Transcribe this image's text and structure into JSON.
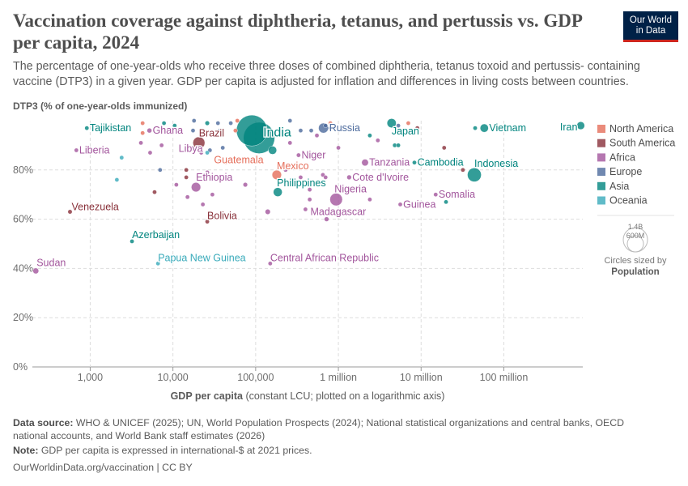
{
  "title": "Vaccination coverage against diphtheria, tetanus, and pertussis vs. GDP per capita, 2024",
  "subtitle": "The percentage of one-year-olds who receive three doses of combined diphtheria, tetanus toxoid and pertussis- containing vaccine (DTP3) in a given year. GDP per capita is adjusted for inflation and differences in living costs between countries.",
  "logo": {
    "line1": "Our World",
    "line2": "in Data"
  },
  "footer": {
    "source_label": "Data source:",
    "source_text": "WHO & UNICEF (2025); UN, World Population Prospects (2024); National statistical organizations and central banks, OECD national accounts, and World Bank staff estimates (2026)",
    "note_label": "Note:",
    "note_text": "GDP per capita is expressed in international-$ at 2021 prices.",
    "url": "OurWorldinData.org/vaccination | CC BY"
  },
  "chart_data": {
    "type": "scatter",
    "ylabel": "DTP3 (% of one-year-olds immunized)",
    "xlabel_bold": "GDP per capita",
    "xlabel_rest": "(constant LCU; plotted on a logarithmic axis)",
    "x_scale": "log",
    "xlim": [
      200,
      900000000
    ],
    "ylim": [
      0,
      100
    ],
    "grid": true,
    "x_ticks": [
      {
        "v": 1000,
        "label": "1,000"
      },
      {
        "v": 10000,
        "label": "10,000"
      },
      {
        "v": 100000,
        "label": "100,000"
      },
      {
        "v": 1000000,
        "label": "1 million"
      },
      {
        "v": 10000000,
        "label": "10 million"
      },
      {
        "v": 100000000,
        "label": "100 million"
      }
    ],
    "y_ticks": [
      {
        "v": 0,
        "label": "0%"
      },
      {
        "v": 20,
        "label": "20%"
      },
      {
        "v": 40,
        "label": "40%"
      },
      {
        "v": 60,
        "label": "60%"
      },
      {
        "v": 80,
        "label": "80%"
      }
    ],
    "regions": [
      {
        "name": "North America",
        "color": "#E56E5A"
      },
      {
        "name": "South America",
        "color": "#883039"
      },
      {
        "name": "Africa",
        "color": "#A2559C"
      },
      {
        "name": "Europe",
        "color": "#4C6A9C"
      },
      {
        "name": "Asia",
        "color": "#00847E"
      },
      {
        "name": "Oceania",
        "color": "#38AABA"
      }
    ],
    "size_legend": {
      "values": [
        "1.4B",
        "600M"
      ],
      "caption": "Circles sized by",
      "variable": "Population"
    },
    "points": [
      {
        "label": "India",
        "region": "Asia",
        "x": 110000,
        "y": 93,
        "pop": 1450000000
      },
      {
        "region": "Asia",
        "x": 90000,
        "y": 96,
        "pop": 1410000000
      },
      {
        "label": "Tajikistan",
        "region": "Asia",
        "x": 910,
        "y": 97,
        "pop": 10000000
      },
      {
        "label": "Ghana",
        "region": "Africa",
        "x": 5200,
        "y": 96,
        "pop": 34000000
      },
      {
        "label": "Brazil",
        "region": "South America",
        "x": 20600,
        "y": 91,
        "pop": 211000000
      },
      {
        "label": "Russia",
        "region": "Europe",
        "x": 660000,
        "y": 97,
        "pop": 144000000
      },
      {
        "label": "Japan",
        "region": "Asia",
        "x": 4400000,
        "y": 99,
        "pop": 124000000
      },
      {
        "label": "Vietnam",
        "region": "Asia",
        "x": 58000000,
        "y": 97,
        "pop": 101000000
      },
      {
        "label": "Iran",
        "region": "Asia",
        "x": 850000000,
        "y": 98,
        "pop": 91000000
      },
      {
        "label": "Liberia",
        "region": "Africa",
        "x": 680,
        "y": 88,
        "pop": 5600000
      },
      {
        "label": "Libya",
        "region": "Africa",
        "x": 22000,
        "y": 87,
        "pop": 7300000
      },
      {
        "label": "Niger",
        "region": "Africa",
        "x": 330000,
        "y": 86,
        "pop": 27000000
      },
      {
        "label": "Guatemala",
        "region": "North America",
        "x": 44000,
        "y": 83,
        "pop": 18000000
      },
      {
        "label": "Mexico",
        "region": "North America",
        "x": 180000,
        "y": 78,
        "pop": 131000000
      },
      {
        "label": "Tanzania",
        "region": "Africa",
        "x": 2100000,
        "y": 83,
        "pop": 68000000
      },
      {
        "label": "Cambodia",
        "region": "Asia",
        "x": 8300000,
        "y": 83,
        "pop": 17000000
      },
      {
        "label": "Indonesia",
        "region": "Asia",
        "x": 44000000,
        "y": 78,
        "pop": 283000000
      },
      {
        "label": "Ethiopia",
        "region": "Africa",
        "x": 19000,
        "y": 73,
        "pop": 130000000
      },
      {
        "label": "Cote d'Ivoire",
        "region": "Africa",
        "x": 1350000,
        "y": 77,
        "pop": 32000000
      },
      {
        "label": "Philippines",
        "region": "Asia",
        "x": 185000,
        "y": 71,
        "pop": 116000000
      },
      {
        "label": "Nigeria",
        "region": "Africa",
        "x": 940000,
        "y": 68,
        "pop": 233000000
      },
      {
        "label": "Somalia",
        "region": "Africa",
        "x": 15000000,
        "y": 70,
        "pop": 19000000
      },
      {
        "label": "Guinea",
        "region": "Africa",
        "x": 5600000,
        "y": 66,
        "pop": 14500000
      },
      {
        "label": "Madagascar",
        "region": "Africa",
        "x": 720000,
        "y": 60,
        "pop": 32000000
      },
      {
        "label": "Venezuela",
        "region": "South America",
        "x": 570,
        "y": 63,
        "pop": 28000000
      },
      {
        "label": "Bolivia",
        "region": "South America",
        "x": 26000,
        "y": 59,
        "pop": 12400000
      },
      {
        "label": "Azerbaijan",
        "region": "Asia",
        "x": 3200,
        "y": 51,
        "pop": 10300000
      },
      {
        "label": "Papua New Guinea",
        "region": "Oceania",
        "x": 6600,
        "y": 42,
        "pop": 10600000
      },
      {
        "label": "Central African Republic",
        "region": "Africa",
        "x": 150000,
        "y": 42,
        "pop": 5300000
      },
      {
        "label": "Sudan",
        "region": "Africa",
        "x": 220,
        "y": 39,
        "pop": 50000000
      },
      {
        "region": "North America",
        "x": 4300,
        "y": 99,
        "pop": 3000000
      },
      {
        "region": "North America",
        "x": 4300,
        "y": 95,
        "pop": 3000000
      },
      {
        "region": "Asia",
        "x": 7800,
        "y": 99,
        "pop": 3000000
      },
      {
        "region": "Asia",
        "x": 10500,
        "y": 98,
        "pop": 4000000
      },
      {
        "region": "Europe",
        "x": 18000,
        "y": 100,
        "pop": 3000000
      },
      {
        "region": "Asia",
        "x": 26000,
        "y": 99,
        "pop": 30000000
      },
      {
        "region": "Europe",
        "x": 35000,
        "y": 99,
        "pop": 4000000
      },
      {
        "region": "Europe",
        "x": 50000,
        "y": 99,
        "pop": 6000000
      },
      {
        "region": "North America",
        "x": 60000,
        "y": 100,
        "pop": 3000000
      },
      {
        "region": "Europe",
        "x": 17500,
        "y": 96,
        "pop": 5000000
      },
      {
        "region": "Europe",
        "x": 37000,
        "y": 96,
        "pop": 9000000
      },
      {
        "region": "North America",
        "x": 57000,
        "y": 96,
        "pop": 5000000
      },
      {
        "region": "Europe",
        "x": 40000,
        "y": 89,
        "pop": 19000000
      },
      {
        "region": "Oceania",
        "x": 26000,
        "y": 87,
        "pop": 3000000
      },
      {
        "region": "Europe",
        "x": 28000,
        "y": 88,
        "pop": 4000000
      },
      {
        "region": "Africa",
        "x": 4100,
        "y": 91,
        "pop": 3000000
      },
      {
        "region": "Africa",
        "x": 7300,
        "y": 90,
        "pop": 3000000
      },
      {
        "region": "Oceania",
        "x": 2400,
        "y": 85,
        "pop": 1000000
      },
      {
        "region": "Africa",
        "x": 5300,
        "y": 87,
        "pop": 3000000
      },
      {
        "region": "Europe",
        "x": 7000,
        "y": 80,
        "pop": 2000000
      },
      {
        "region": "South America",
        "x": 14500,
        "y": 80,
        "pop": 4000000
      },
      {
        "region": "Africa",
        "x": 26000,
        "y": 79,
        "pop": 3000000
      },
      {
        "region": "South America",
        "x": 14500,
        "y": 77,
        "pop": 7000000
      },
      {
        "region": "Africa",
        "x": 11000,
        "y": 74,
        "pop": 4000000
      },
      {
        "region": "Africa",
        "x": 75000,
        "y": 74,
        "pop": 30000000
      },
      {
        "region": "Oceania",
        "x": 2100,
        "y": 76,
        "pop": 1000000
      },
      {
        "region": "South America",
        "x": 6000,
        "y": 71,
        "pop": 2000000
      },
      {
        "region": "Africa",
        "x": 30000,
        "y": 70,
        "pop": 3000000
      },
      {
        "region": "Africa",
        "x": 23000,
        "y": 66,
        "pop": 3000000
      },
      {
        "region": "Africa",
        "x": 15000,
        "y": 69,
        "pop": 3000000
      },
      {
        "region": "Asia",
        "x": 160000,
        "y": 88,
        "pop": 100000000
      },
      {
        "region": "Europe",
        "x": 260000,
        "y": 100,
        "pop": 3000000
      },
      {
        "region": "Europe",
        "x": 350000,
        "y": 96,
        "pop": 4000000
      },
      {
        "region": "Europe",
        "x": 470000,
        "y": 96,
        "pop": 3000000
      },
      {
        "region": "Africa",
        "x": 260000,
        "y": 91,
        "pop": 5000000
      },
      {
        "region": "Africa",
        "x": 230000,
        "y": 80,
        "pop": 3000000
      },
      {
        "region": "Africa",
        "x": 350000,
        "y": 77,
        "pop": 4000000
      },
      {
        "region": "Africa",
        "x": 140000,
        "y": 63,
        "pop": 40000000
      },
      {
        "region": "Africa",
        "x": 400000,
        "y": 64,
        "pop": 4000000
      },
      {
        "region": "Africa",
        "x": 450000,
        "y": 68,
        "pop": 4000000
      },
      {
        "region": "Africa",
        "x": 450000,
        "y": 72,
        "pop": 3000000
      },
      {
        "region": "Europe",
        "x": 700000,
        "y": 98,
        "pop": 20000000
      },
      {
        "region": "Europe",
        "x": 800000,
        "y": 97,
        "pop": 4000000
      },
      {
        "region": "North America",
        "x": 800000,
        "y": 99,
        "pop": 3000000
      },
      {
        "region": "Asia",
        "x": 2400000,
        "y": 94,
        "pop": 3000000
      },
      {
        "region": "Africa",
        "x": 3000000,
        "y": 92,
        "pop": 15000000
      },
      {
        "region": "Asia",
        "x": 4800000,
        "y": 90,
        "pop": 8000000
      },
      {
        "region": "Asia",
        "x": 5300000,
        "y": 90,
        "pop": 8000000
      },
      {
        "region": "Africa",
        "x": 1000000,
        "y": 89,
        "pop": 3000000
      },
      {
        "region": "Africa",
        "x": 550000,
        "y": 94,
        "pop": 4000000
      },
      {
        "region": "South America",
        "x": 9000000,
        "y": 97,
        "pop": 3000000
      },
      {
        "region": "Europe",
        "x": 5300000,
        "y": 98,
        "pop": 3000000
      },
      {
        "region": "North America",
        "x": 7000000,
        "y": 99,
        "pop": 3000000
      },
      {
        "region": "South America",
        "x": 19000000,
        "y": 89,
        "pop": 18000000
      },
      {
        "region": "Asia",
        "x": 45000000,
        "y": 97,
        "pop": 15000000
      },
      {
        "region": "South America",
        "x": 32000000,
        "y": 80,
        "pop": 3000000
      },
      {
        "region": "Asia",
        "x": 20000000,
        "y": 67,
        "pop": 3000000
      },
      {
        "region": "Africa",
        "x": 650000,
        "y": 78,
        "pop": 3000000
      },
      {
        "region": "Africa",
        "x": 700000,
        "y": 77,
        "pop": 3000000
      },
      {
        "region": "Africa",
        "x": 2400000,
        "y": 68,
        "pop": 3000000
      }
    ]
  }
}
